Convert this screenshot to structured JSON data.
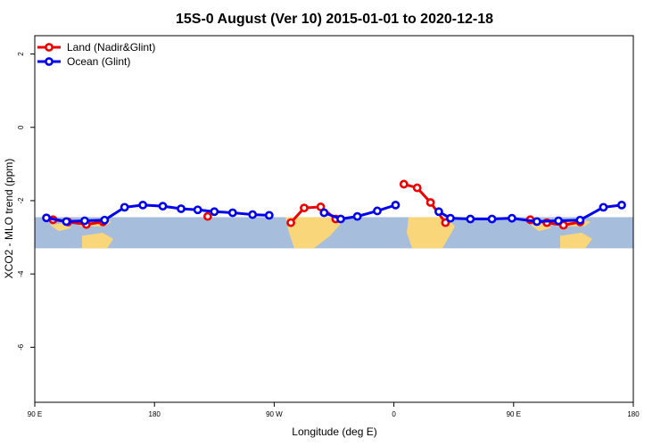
{
  "chart_data": {
    "type": "line",
    "title": "15S-0 August (Ver 10)   2015-01-01 to 2020-12-18",
    "xlabel": "Longitude (deg E)",
    "ylabel": "XCO2 - MLO trend (ppm)",
    "xlim": [
      90,
      450
    ],
    "ylim": [
      -7.5,
      2.5
    ],
    "xticks": [
      {
        "value": 90,
        "label": "90 E"
      },
      {
        "value": 162,
        "label": "180"
      },
      {
        "value": 234,
        "label": "90 W"
      },
      {
        "value": 306,
        "label": "0"
      },
      {
        "value": 378,
        "label": "90 E"
      },
      {
        "value": 450,
        "label": "180"
      }
    ],
    "yticks": [
      {
        "value": 2,
        "label": "2"
      },
      {
        "value": 0,
        "label": "0"
      },
      {
        "value": -2,
        "label": "-2"
      },
      {
        "value": -4,
        "label": "-4"
      },
      {
        "value": -6,
        "label": "-6"
      }
    ],
    "map_band": {
      "ymin": -3.3,
      "ymax": -2.45
    },
    "legend_position": "top-left",
    "series": [
      {
        "name": "Land (Nadir&Glint)",
        "color": "#ee0000",
        "segments": [
          [
            [
              101,
              -2.52
            ],
            [
              110,
              -2.58
            ],
            [
              121,
              -2.65
            ],
            [
              131,
              -2.58
            ]
          ],
          [
            [
              194,
              -2.43
            ]
          ],
          [
            [
              244,
              -2.6
            ],
            [
              252,
              -2.2
            ],
            [
              262,
              -2.17
            ],
            [
              271,
              -2.5
            ]
          ],
          [
            [
              312,
              -1.55
            ],
            [
              320,
              -1.65
            ],
            [
              328,
              -2.05
            ],
            [
              337,
              -2.6
            ]
          ],
          [
            [
              388,
              -2.52
            ],
            [
              398,
              -2.6
            ],
            [
              408,
              -2.67
            ],
            [
              418,
              -2.58
            ]
          ]
        ]
      },
      {
        "name": "Ocean (Glint)",
        "color": "#0000ee",
        "segments": [
          [
            [
              97,
              -2.47
            ],
            [
              109,
              -2.57
            ],
            [
              120,
              -2.55
            ],
            [
              132,
              -2.53
            ],
            [
              144,
              -2.18
            ],
            [
              155,
              -2.12
            ],
            [
              167,
              -2.15
            ],
            [
              178,
              -2.22
            ],
            [
              188,
              -2.25
            ],
            [
              198,
              -2.3
            ],
            [
              209,
              -2.33
            ],
            [
              221,
              -2.38
            ],
            [
              231,
              -2.4
            ]
          ],
          [
            [
              264,
              -2.33
            ],
            [
              274,
              -2.5
            ],
            [
              284,
              -2.43
            ],
            [
              296,
              -2.28
            ],
            [
              307,
              -2.12
            ]
          ],
          [
            [
              333,
              -2.3
            ],
            [
              340,
              -2.48
            ],
            [
              352,
              -2.5
            ],
            [
              365,
              -2.5
            ],
            [
              377,
              -2.48
            ],
            [
              392,
              -2.57
            ],
            [
              405,
              -2.55
            ],
            [
              418,
              -2.53
            ],
            [
              432,
              -2.18
            ],
            [
              443,
              -2.12
            ]
          ]
        ]
      }
    ]
  }
}
